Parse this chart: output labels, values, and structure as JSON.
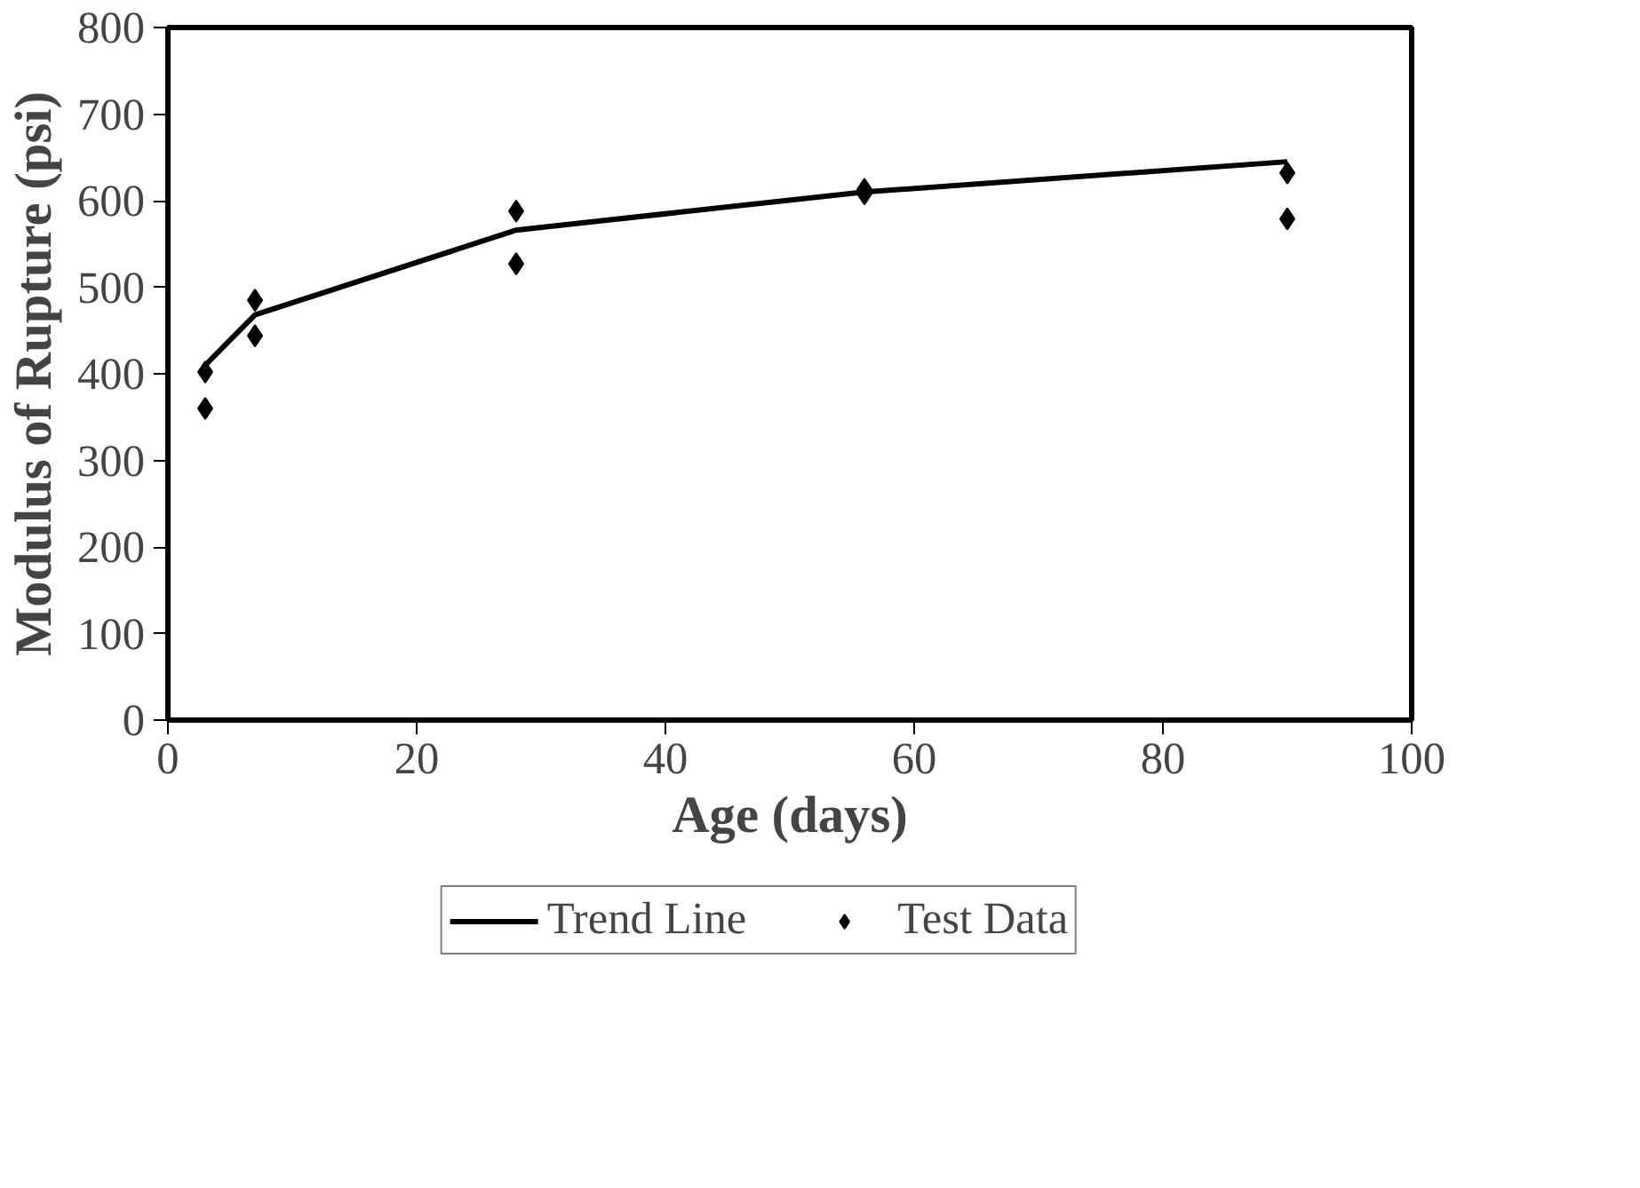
{
  "chart_data": {
    "type": "scatter",
    "xlabel": "Age (days)",
    "ylabel": "Modulus of Rupture (psi)",
    "xlim": [
      0,
      100
    ],
    "xticks": [
      0,
      20,
      40,
      60,
      80,
      100
    ],
    "ylim": [
      0,
      800
    ],
    "yticks": [
      0,
      100,
      200,
      300,
      400,
      500,
      600,
      700,
      800
    ],
    "grid": false,
    "legend": "bottom",
    "series": [
      {
        "name": "Trend Line",
        "type": "line",
        "color": "#000000",
        "marker": "none",
        "line_style": "solid",
        "x": [
          3,
          7,
          28,
          56,
          90
        ],
        "values": [
          410,
          468,
          566,
          610,
          645
        ]
      },
      {
        "name": "Test Data",
        "color": "#000000",
        "marker": "diamond",
        "x": [
          3,
          3,
          7,
          7,
          28,
          28,
          56,
          56,
          90,
          90
        ],
        "values": [
          402,
          360,
          485,
          444,
          588,
          527,
          613,
          608,
          632,
          579
        ]
      }
    ]
  }
}
